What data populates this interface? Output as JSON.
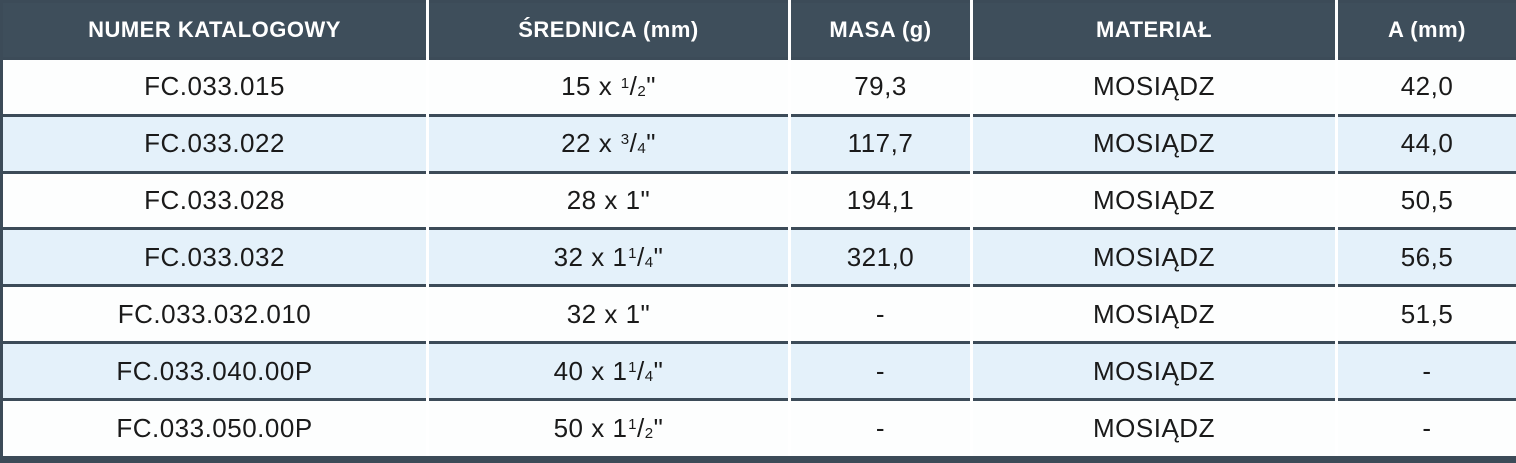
{
  "theme": {
    "header_bg": "#3E4E5B",
    "header_text": "#FFFFFF",
    "border_dark": "#3C4B58",
    "row_bg": "#FDFEFE",
    "row_alt_bg": "#E4F1FA",
    "cell_text": "#1A1A1A",
    "separator_white": "#FFFFFF"
  },
  "table": {
    "columns": [
      "NUMER KATALOGOWY",
      "ŚREDNICA (mm)",
      "MASA (g)",
      "MATERIAŁ",
      "A (mm)"
    ],
    "rows": [
      {
        "catalog_number": "FC.033.015",
        "diameter": "15 x {1/2}\"",
        "mass_g": "79,3",
        "material": "MOSIĄDZ",
        "a_mm": "42,0"
      },
      {
        "catalog_number": "FC.033.022",
        "diameter": "22 x {3/4}\"",
        "mass_g": "117,7",
        "material": "MOSIĄDZ",
        "a_mm": "44,0"
      },
      {
        "catalog_number": "FC.033.028",
        "diameter": "28 x 1\"",
        "mass_g": "194,1",
        "material": "MOSIĄDZ",
        "a_mm": "50,5"
      },
      {
        "catalog_number": "FC.033.032",
        "diameter": "32 x 1{1/4}\"",
        "mass_g": "321,0",
        "material": "MOSIĄDZ",
        "a_mm": "56,5"
      },
      {
        "catalog_number": "FC.033.032.010",
        "diameter": "32 x 1\"",
        "mass_g": "-",
        "material": "MOSIĄDZ",
        "a_mm": "51,5"
      },
      {
        "catalog_number": "FC.033.040.00P",
        "diameter": "40 x 1{1/4}\"",
        "mass_g": "-",
        "material": "MOSIĄDZ",
        "a_mm": "-"
      },
      {
        "catalog_number": "FC.033.050.00P",
        "diameter": "50 x 1{1/2}\"",
        "mass_g": "-",
        "material": "MOSIĄDZ",
        "a_mm": "-"
      }
    ]
  }
}
